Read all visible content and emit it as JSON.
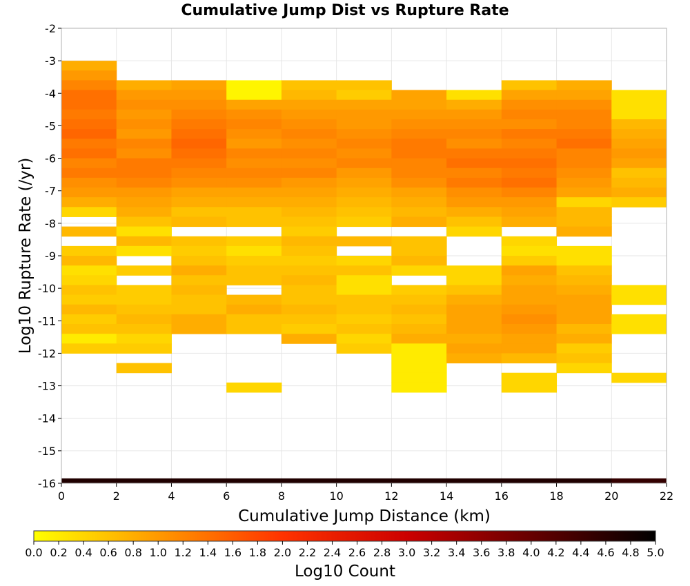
{
  "chart_data": {
    "type": "heatmap",
    "title": "Cumulative Jump Dist vs Rupture Rate",
    "xlabel": "Cumulative Jump Distance (km)",
    "ylabel": "Log10 Rupture Rate (/yr)",
    "xlim": [
      0,
      22
    ],
    "ylim": [
      -16,
      -2
    ],
    "xticks": [
      "0",
      "2",
      "4",
      "6",
      "8",
      "10",
      "12",
      "14",
      "16",
      "18",
      "20",
      "22"
    ],
    "yticks": [
      "-2",
      "-3",
      "-4",
      "-5",
      "-6",
      "-7",
      "-8",
      "-9",
      "-10",
      "-11",
      "-12",
      "-13",
      "-14",
      "-15",
      "-16"
    ],
    "x_bin_width_km": 2,
    "y_bin_height_log10": 0.3,
    "grid": true,
    "colorbar": {
      "label": "Log10 Count",
      "range": [
        0.0,
        5.0
      ],
      "ticks": [
        "0.0",
        "0.2",
        "0.4",
        "0.6",
        "0.8",
        "1.0",
        "1.2",
        "1.4",
        "1.6",
        "1.8",
        "2.0",
        "2.2",
        "2.4",
        "2.6",
        "2.8",
        "3.0",
        "3.2",
        "3.4",
        "3.6",
        "3.8",
        "4.0",
        "4.2",
        "4.4",
        "4.6",
        "4.8",
        "5.0"
      ],
      "colors": [
        "#ffff00",
        "#ff9900",
        "#ff3300",
        "#cc0000",
        "#660000",
        "#000000"
      ]
    },
    "columns": [
      {
        "x_start": 0,
        "y_top": -3.0,
        "values": [
          0.8,
          1.0,
          1.2,
          1.4,
          1.4,
          1.3,
          1.4,
          1.5,
          1.3,
          1.4,
          1.2,
          1.3,
          1.1,
          1.0,
          0.8,
          0.4,
          null,
          0.7,
          null,
          0.5,
          0.7,
          0.3,
          0.4,
          0.6,
          0.5,
          0.7,
          0.5,
          0.6,
          0.2,
          0.5
        ]
      },
      {
        "x_start": 2,
        "y_top": -3.6,
        "values": [
          0.8,
          1.0,
          1.1,
          1.0,
          1.1,
          1.0,
          1.2,
          1.1,
          1.3,
          1.3,
          1.2,
          1.0,
          0.9,
          0.8,
          0.6,
          0.3,
          0.7,
          0.3,
          null,
          0.5,
          null,
          0.5,
          0.5,
          0.6,
          0.7,
          0.6,
          0.4,
          0.5,
          null,
          0.6
        ]
      },
      {
        "x_start": 4,
        "y_top": -3.6,
        "values": [
          0.9,
          1.0,
          1.1,
          1.2,
          1.3,
          1.4,
          1.5,
          1.4,
          1.3,
          1.2,
          1.1,
          0.9,
          0.8,
          0.6,
          0.7,
          null,
          0.6,
          0.5,
          0.6,
          0.8,
          0.6,
          0.7,
          0.6,
          0.6,
          0.8,
          0.8
        ]
      },
      {
        "x_start": 6,
        "y_top": -3.6,
        "values": [
          0.1,
          0.1,
          0.9,
          1.1,
          1.2,
          1.1,
          1.0,
          1.2,
          1.1,
          1.2,
          1.1,
          0.9,
          0.8,
          0.6,
          0.6,
          null,
          0.5,
          0.3,
          0.5,
          0.6,
          0.6,
          null,
          0.7,
          0.8,
          0.6,
          0.6,
          null,
          null,
          null,
          null,
          null,
          0.4
        ]
      },
      {
        "x_start": 8,
        "y_top": -3.6,
        "values": [
          0.6,
          0.7,
          0.9,
          1.0,
          1.1,
          1.2,
          1.1,
          1.2,
          1.1,
          1.2,
          1.0,
          0.9,
          0.8,
          0.7,
          0.6,
          0.5,
          0.7,
          0.6,
          0.5,
          0.6,
          0.7,
          0.6,
          0.6,
          0.7,
          0.6,
          0.5,
          0.8
        ]
      },
      {
        "x_start": 10,
        "y_top": -3.6,
        "values": [
          0.6,
          0.5,
          0.9,
          1.0,
          1.0,
          1.1,
          1.2,
          1.1,
          1.2,
          1.0,
          0.9,
          0.8,
          0.7,
          0.6,
          0.5,
          null,
          0.7,
          null,
          0.4,
          0.6,
          0.3,
          0.3,
          0.6,
          0.6,
          0.5,
          0.6,
          0.4,
          0.5
        ]
      },
      {
        "x_start": 12,
        "y_top": -3.9,
        "values": [
          0.9,
          0.9,
          1.0,
          1.1,
          1.2,
          1.3,
          1.3,
          1.2,
          1.2,
          1.1,
          0.9,
          0.8,
          0.7,
          0.8,
          null,
          0.6,
          0.6,
          0.7,
          0.4,
          null,
          0.5,
          0.6,
          0.7,
          0.6,
          0.7,
          0.8,
          0.2,
          0.2,
          0.2,
          0.2,
          0.2
        ]
      },
      {
        "x_start": 14,
        "y_top": -3.9,
        "values": [
          0.3,
          0.8,
          1.0,
          1.1,
          1.2,
          1.1,
          1.3,
          1.4,
          1.2,
          1.3,
          1.1,
          1.0,
          0.8,
          0.6,
          0.4,
          null,
          null,
          null,
          0.4,
          0.4,
          0.6,
          0.8,
          0.9,
          0.9,
          0.9,
          0.8,
          0.9,
          0.8
        ]
      },
      {
        "x_start": 16,
        "y_top": -3.6,
        "values": [
          0.6,
          0.9,
          1.1,
          1.2,
          1.1,
          1.3,
          1.2,
          1.3,
          1.4,
          1.3,
          1.4,
          1.2,
          1.0,
          0.9,
          0.8,
          null,
          0.4,
          0.3,
          0.5,
          0.9,
          0.8,
          0.9,
          0.9,
          1.0,
          1.1,
          1.0,
          0.9,
          0.9,
          0.7,
          null,
          0.4,
          0.4
        ]
      },
      {
        "x_start": 18,
        "y_top": -3.6,
        "values": [
          0.8,
          0.9,
          1.1,
          1.2,
          1.2,
          1.3,
          1.4,
          1.2,
          1.2,
          1.1,
          1.0,
          0.9,
          0.4,
          0.7,
          0.7,
          0.8,
          null,
          0.3,
          0.3,
          0.6,
          0.7,
          0.8,
          0.9,
          0.9,
          0.9,
          0.7,
          0.8,
          0.5,
          0.6,
          0.4
        ]
      },
      {
        "x_start": 20,
        "y_top": -3.9,
        "values": [
          0.3,
          0.3,
          0.3,
          0.7,
          0.8,
          0.9,
          1.0,
          0.9,
          0.6,
          0.7,
          0.8,
          0.5,
          null,
          null,
          null,
          null,
          null,
          null,
          null,
          null,
          0.3,
          0.3,
          null,
          0.3,
          0.3,
          null,
          null,
          null,
          null,
          0.4
        ]
      }
    ],
    "bottom_row": {
      "y_bottom": -16,
      "y_top": -15.85,
      "values": [
        4.7,
        4.7,
        4.7,
        4.7,
        4.7,
        4.7,
        4.7,
        4.7,
        4.7,
        4.7,
        4.5
      ]
    }
  }
}
